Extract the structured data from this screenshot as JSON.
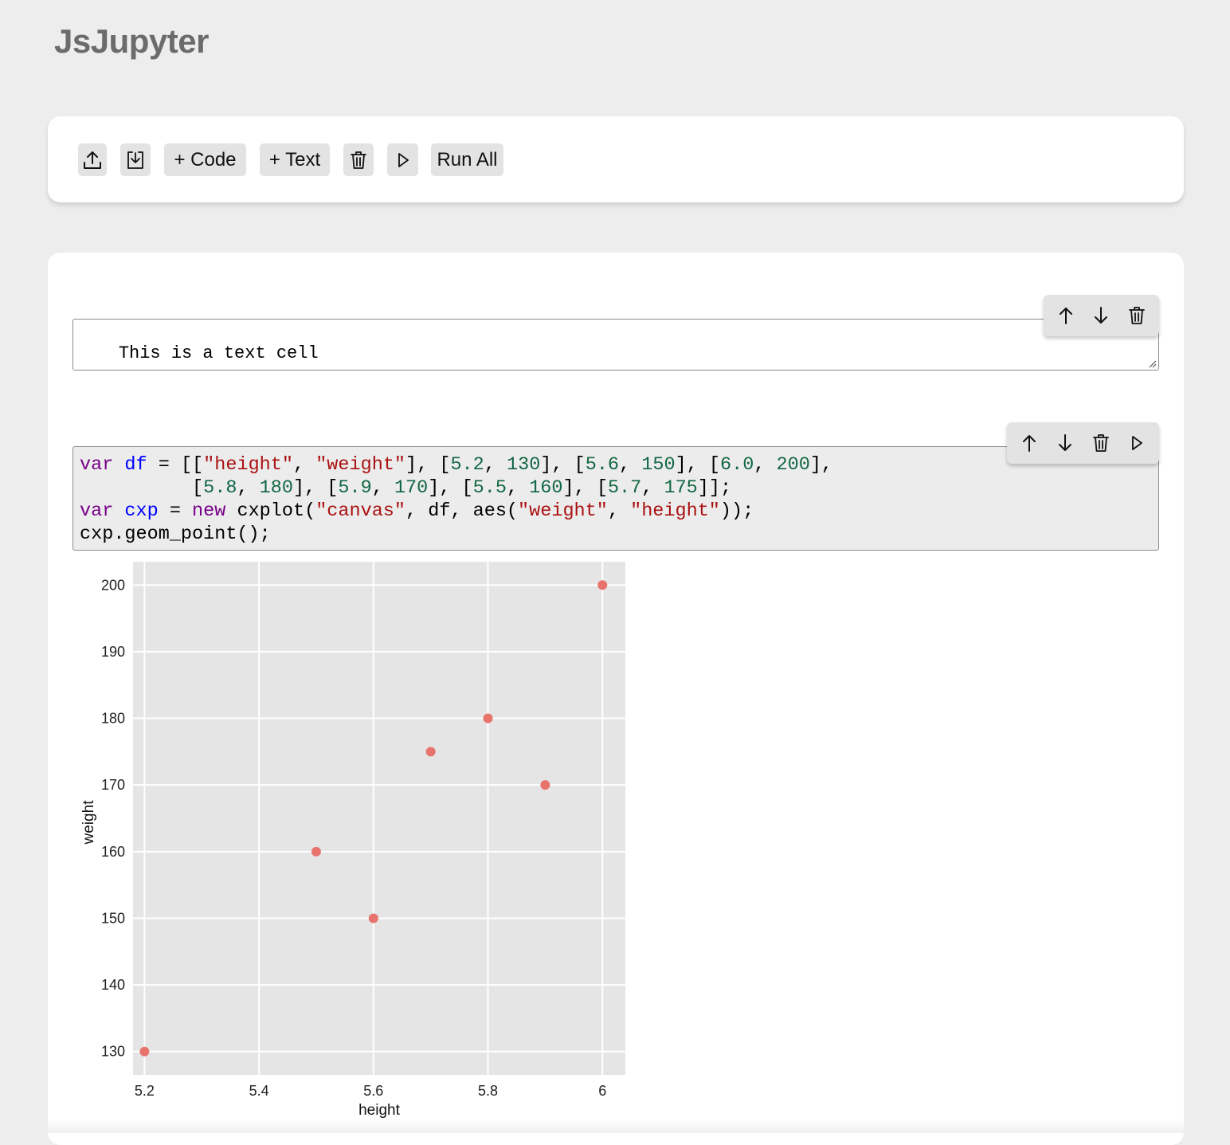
{
  "app": {
    "title": "JsJupyter"
  },
  "toolbar": {
    "upload_icon": "upload-icon",
    "download_icon": "download-icon",
    "add_code_label": "+ Code",
    "add_text_label": "+ Text",
    "delete_icon": "trash-icon",
    "run_icon": "play-icon",
    "run_all_label": "Run All"
  },
  "cells": {
    "text_cell": {
      "content": "This is a text cell"
    },
    "code_cell": {
      "lines": [
        "var df = [[\"height\", \"weight\"], [5.2, 130], [5.6, 150], [6.0, 200],",
        "          [5.8, 180], [5.9, 170], [5.5, 160], [5.7, 175]];",
        "var cxp = new cxplot(\"canvas\", df, aes(\"weight\", \"height\"));",
        "cxp.geom_point();"
      ]
    }
  },
  "chart_data": {
    "type": "scatter",
    "xlabel": "height",
    "ylabel": "weight",
    "x_ticks": [
      "5.2",
      "5.4",
      "5.6",
      "5.8",
      "6"
    ],
    "y_ticks": [
      "130",
      "140",
      "150",
      "160",
      "170",
      "180",
      "190",
      "200"
    ],
    "xlim": [
      5.18,
      6.04
    ],
    "ylim": [
      126.5,
      203.5
    ],
    "grid": true,
    "point_color": "#e8736d",
    "panel_color": "#e5e5e5",
    "points": [
      {
        "x": 5.2,
        "y": 130
      },
      {
        "x": 5.6,
        "y": 150
      },
      {
        "x": 6.0,
        "y": 200
      },
      {
        "x": 5.8,
        "y": 180
      },
      {
        "x": 5.9,
        "y": 170
      },
      {
        "x": 5.5,
        "y": 160
      },
      {
        "x": 5.7,
        "y": 175
      }
    ]
  }
}
